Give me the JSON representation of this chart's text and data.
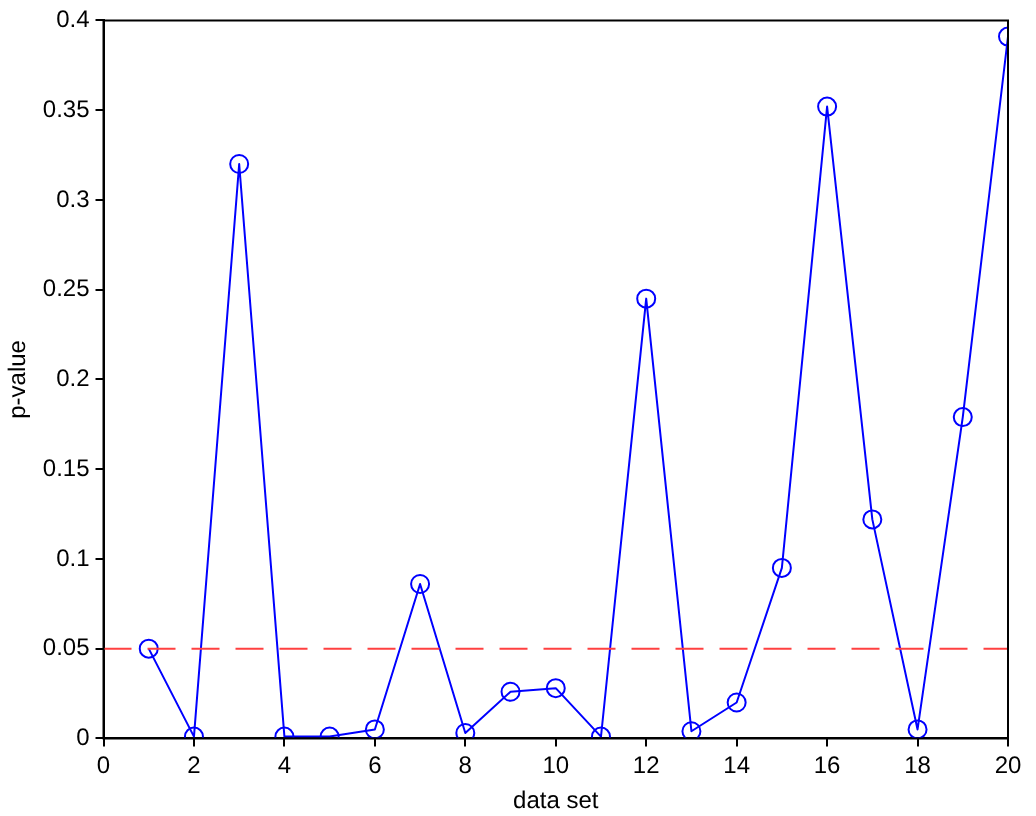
{
  "chart_data": {
    "type": "line",
    "xlabel": "data set",
    "ylabel": "p-value",
    "x": [
      1,
      2,
      3,
      4,
      5,
      6,
      7,
      8,
      9,
      10,
      11,
      12,
      13,
      14,
      15,
      16,
      17,
      18,
      19,
      20
    ],
    "series": [
      {
        "color": "#0000ff",
        "values": [
          0.05,
          0.001,
          0.32,
          0.001,
          0.001,
          0.005,
          0.086,
          0.003,
          0.026,
          0.028,
          0.001,
          0.245,
          0.004,
          0.02,
          0.095,
          0.352,
          0.122,
          0.005,
          0.179,
          0.391
        ]
      }
    ],
    "xlim": [
      0,
      20
    ],
    "xticks": [
      0,
      2,
      4,
      6,
      8,
      10,
      12,
      14,
      16,
      18,
      20
    ],
    "ylim": [
      0,
      0.4
    ],
    "yticks": [
      0,
      0.05,
      0.1,
      0.15,
      0.2,
      0.25,
      0.3,
      0.35,
      0.4
    ],
    "ref_lines": [
      {
        "axis": "y",
        "value": 0.05,
        "color": "#ff4040",
        "line_style": "dashed"
      }
    ],
    "grid": false,
    "legend": false,
    "marker": "circle",
    "line_style": "solid"
  }
}
